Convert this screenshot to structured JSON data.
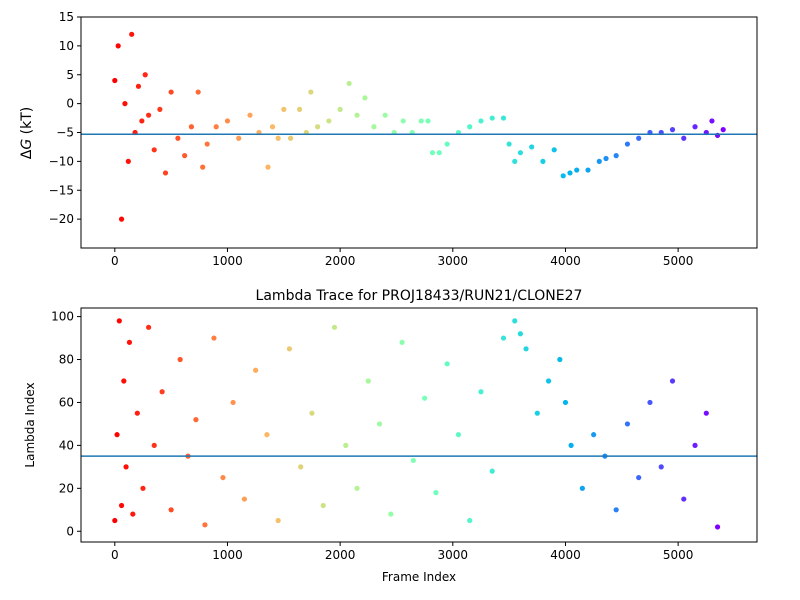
{
  "chart_data": [
    {
      "type": "scatter",
      "title": "",
      "xlabel": "",
      "ylabel_prefix": "Δ",
      "ylabel_var": "G",
      "ylabel_suffix": " (kT)",
      "xlim": [
        -300,
        5700
      ],
      "ylim": [
        -25,
        15
      ],
      "xticks": [
        0,
        1000,
        2000,
        3000,
        4000,
        5000
      ],
      "yticks": [
        -20,
        -15,
        -10,
        -5,
        0,
        5,
        10,
        15
      ],
      "reference_line": -5.3,
      "reference_color": "#1f77b4",
      "colormap": "rainbow (red at frame 0 to violet at last frame)",
      "series": [
        {
          "x": [
            0,
            30,
            60,
            90,
            120,
            150,
            180,
            210,
            240,
            270,
            300,
            350,
            400,
            450,
            500,
            560,
            620,
            680,
            740,
            780,
            820,
            900,
            1000,
            1100,
            1200,
            1280,
            1360,
            1400,
            1450,
            1500,
            1560,
            1640,
            1700,
            1740,
            1800,
            1900,
            2000,
            2080,
            2150,
            2220,
            2300,
            2400,
            2480,
            2560,
            2640,
            2720,
            2780,
            2820,
            2880,
            2950,
            3050,
            3150,
            3250,
            3350,
            3450,
            3500,
            3550,
            3600,
            3700,
            3800,
            3900,
            3980,
            4040,
            4100,
            4200,
            4300,
            4360,
            4450,
            4550,
            4650,
            4750,
            4850,
            4950,
            5050,
            5150,
            5250,
            5300,
            5350,
            5400
          ],
          "y": [
            4,
            10,
            -20,
            0,
            -10,
            12,
            -5,
            3,
            -3,
            5,
            -2,
            -8,
            -1,
            -12,
            2,
            -6,
            -9,
            -4,
            2,
            -11,
            -7,
            -4,
            -3,
            -6,
            -2,
            -5,
            -11,
            -4,
            -6,
            -1,
            -6,
            -1,
            -5,
            2,
            -4,
            -3,
            -1,
            3.5,
            -2,
            1,
            -4,
            -2,
            -5,
            -3,
            -5,
            -3,
            -3,
            -8.5,
            -8.5,
            -7,
            -5,
            -4,
            -3,
            -2.5,
            -2.5,
            -7,
            -10,
            -8.5,
            -7.5,
            -10,
            -8,
            -12.5,
            -12,
            -11.5,
            -11.5,
            -10,
            -9.5,
            -9,
            -7,
            -6,
            -5,
            -5,
            -4.5,
            -6,
            -4,
            -5,
            -3,
            -5.5,
            -4.5
          ]
        }
      ]
    },
    {
      "type": "scatter",
      "title": "Lambda Trace for PROJ18433/RUN21/CLONE27",
      "xlabel": "Frame Index",
      "ylabel": "Lambda Index",
      "xlim": [
        -300,
        5700
      ],
      "ylim": [
        -5,
        104
      ],
      "xticks": [
        0,
        1000,
        2000,
        3000,
        4000,
        5000
      ],
      "yticks": [
        0,
        20,
        40,
        60,
        80,
        100
      ],
      "reference_line": 35,
      "reference_color": "#1f77b4",
      "colormap": "rainbow (red at frame 0 to violet at last frame)",
      "series": [
        {
          "x": [
            0,
            20,
            40,
            60,
            80,
            100,
            130,
            160,
            200,
            250,
            300,
            350,
            420,
            500,
            580,
            650,
            720,
            800,
            880,
            960,
            1050,
            1150,
            1250,
            1350,
            1450,
            1550,
            1650,
            1750,
            1850,
            1950,
            2050,
            2150,
            2250,
            2350,
            2450,
            2550,
            2650,
            2750,
            2850,
            2950,
            3050,
            3150,
            3250,
            3350,
            3450,
            3550,
            3600,
            3650,
            3750,
            3850,
            3950,
            4000,
            4050,
            4150,
            4250,
            4350,
            4450,
            4550,
            4650,
            4750,
            4850,
            4950,
            5050,
            5150,
            5250,
            5350
          ],
          "y": [
            5,
            45,
            98,
            12,
            70,
            30,
            88,
            8,
            55,
            20,
            95,
            40,
            65,
            10,
            80,
            35,
            52,
            3,
            90,
            25,
            60,
            15,
            75,
            45,
            5,
            85,
            30,
            55,
            12,
            95,
            40,
            20,
            70,
            50,
            8,
            88,
            33,
            62,
            18,
            78,
            45,
            5,
            65,
            28,
            90,
            98,
            92,
            85,
            55,
            70,
            80,
            60,
            40,
            20,
            45,
            35,
            10,
            50,
            25,
            60,
            30,
            70,
            15,
            40,
            55,
            2
          ]
        }
      ]
    }
  ]
}
